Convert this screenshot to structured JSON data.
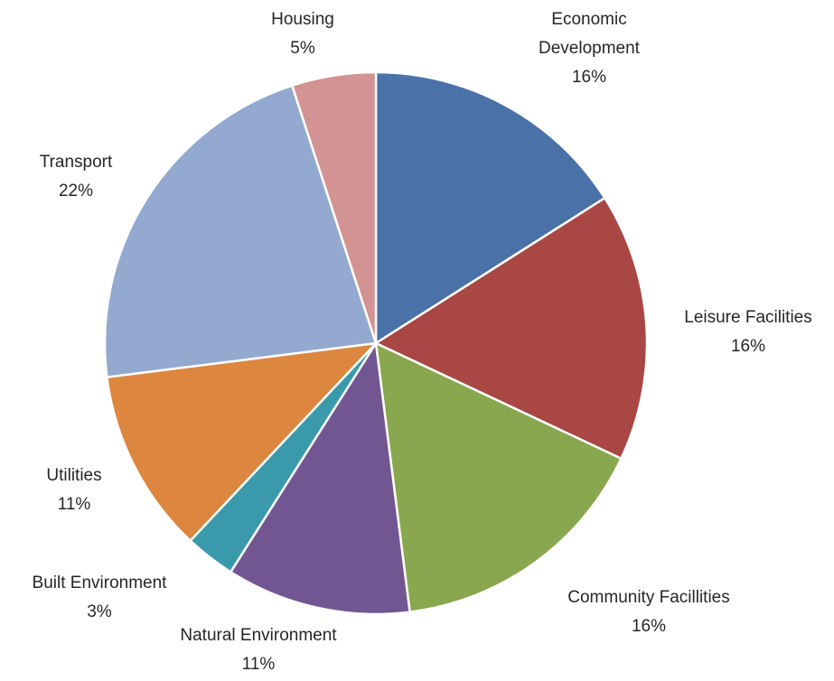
{
  "chart_data": {
    "type": "pie",
    "title": "",
    "start": "top",
    "direction": "clockwise",
    "legend": "none",
    "slices": [
      {
        "label_lines": [
          "Economic",
          "Development"
        ],
        "value": 16,
        "value_label": "16%",
        "color": "#4A72A8"
      },
      {
        "label_lines": [
          "Leisure Facilities"
        ],
        "value": 16,
        "value_label": "16%",
        "color": "#A84744"
      },
      {
        "label_lines": [
          "Community Facillities"
        ],
        "value": 16,
        "value_label": "16%",
        "color": "#89A74F"
      },
      {
        "label_lines": [
          "Natural Environment"
        ],
        "value": 11,
        "value_label": "11%",
        "color": "#725692"
      },
      {
        "label_lines": [
          "Built Environment"
        ],
        "value": 3,
        "value_label": "3%",
        "color": "#3A9AAB"
      },
      {
        "label_lines": [
          "Utilities"
        ],
        "value": 11,
        "value_label": "11%",
        "color": "#DC8640"
      },
      {
        "label_lines": [
          "Transport"
        ],
        "value": 22,
        "value_label": "22%",
        "color": "#93A9D0"
      },
      {
        "label_lines": [
          "Housing"
        ],
        "value": 5,
        "value_label": "5%",
        "color": "#D29392"
      }
    ]
  }
}
